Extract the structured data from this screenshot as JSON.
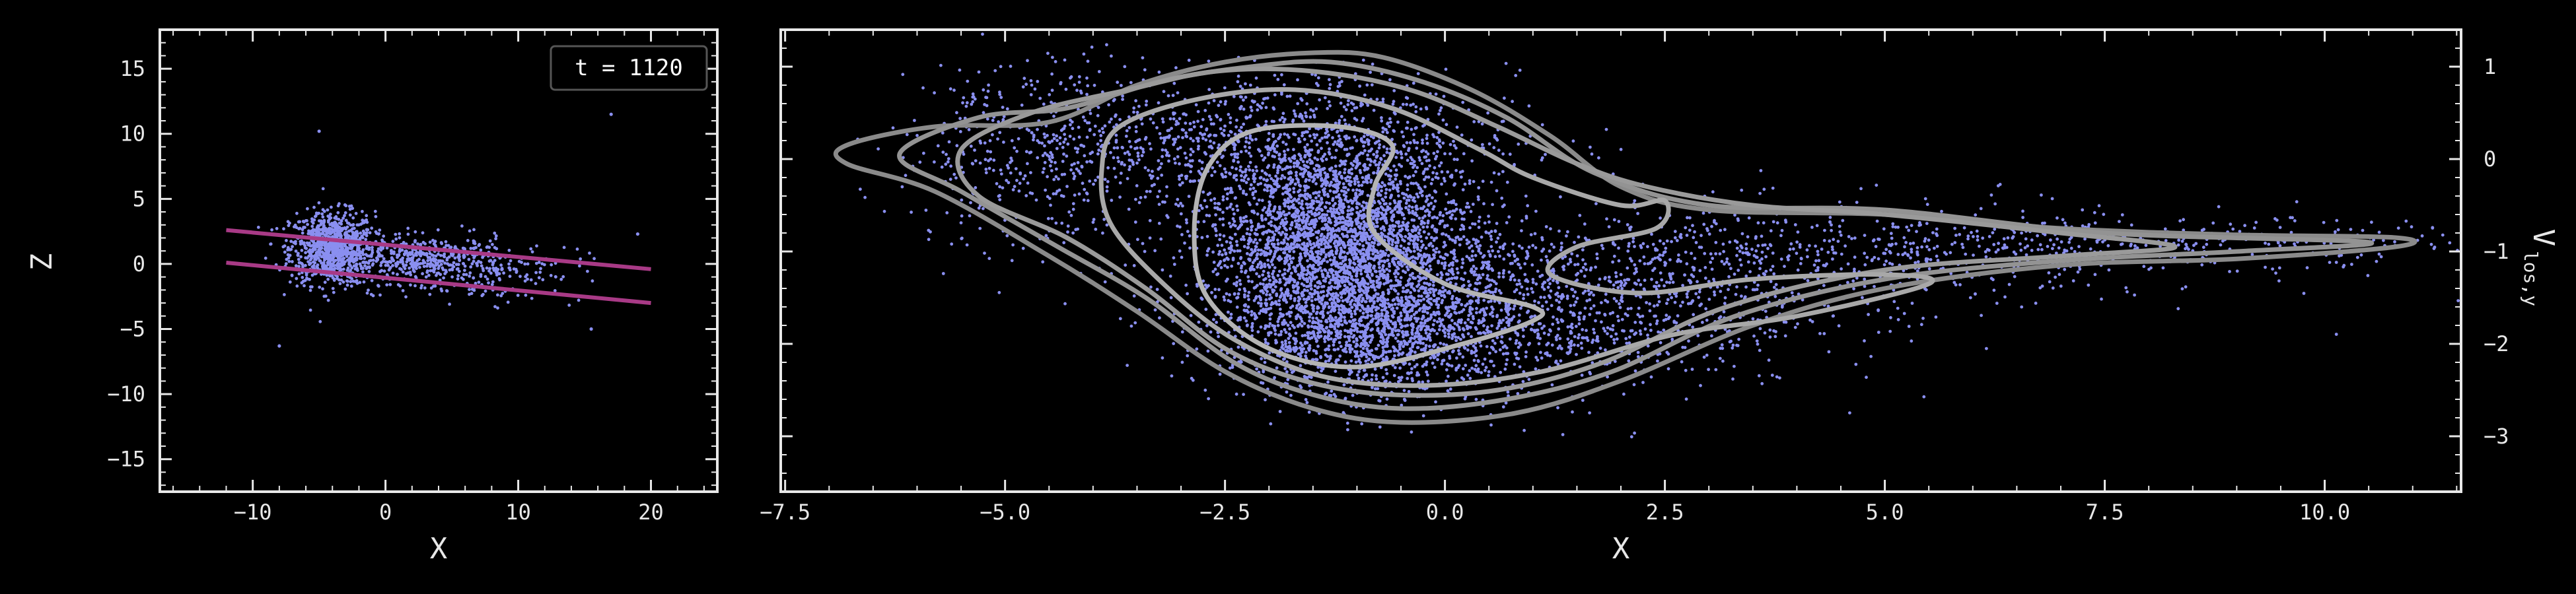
{
  "chart_data": [
    {
      "type": "scatter",
      "xlabel": "X",
      "ylabel": "Z",
      "xlim": [
        -17,
        25
      ],
      "ylim": [
        -17.5,
        18
      ],
      "xticks": [
        -10,
        0,
        10,
        20
      ],
      "xtick_labels": [
        "−10",
        "0",
        "10",
        "20"
      ],
      "yticks": [
        -15,
        -10,
        -5,
        0,
        5,
        10,
        15
      ],
      "ytick_labels": [
        "−15",
        "−10",
        "−5",
        "0",
        "5",
        "10",
        "15"
      ],
      "annotation": "t = 1120",
      "colors": {
        "points": "#8a8ff0",
        "lines": "#a83a86",
        "axis": "#e8e8e8"
      },
      "lines": [
        {
          "x": [
            -12,
            20
          ],
          "y": [
            2.6,
            -0.4
          ]
        },
        {
          "x": [
            -12,
            20
          ],
          "y": [
            0.1,
            -3.0
          ]
        }
      ],
      "clusters": [
        {
          "cx": -4,
          "cy": 1.2,
          "sx": 1.6,
          "sy": 1.4,
          "n": 900
        },
        {
          "cx": 3,
          "cy": 0.3,
          "sx": 3.2,
          "sy": 0.9,
          "n": 450
        },
        {
          "cx": 8,
          "cy": -0.6,
          "sx": 3.5,
          "sy": 1.2,
          "n": 140
        }
      ],
      "outliers": [
        {
          "x": -5,
          "y": 10.2
        },
        {
          "x": 17,
          "y": 11.5
        },
        {
          "x": 15.5,
          "y": -5
        },
        {
          "x": -8,
          "y": -6.3
        },
        {
          "x": 19,
          "y": 2.3
        }
      ]
    },
    {
      "type": "scatter",
      "subtype": "scatter-with-density-contours",
      "xlabel": "X",
      "ylabel_main": "V",
      "ylabel_sub": "los,y",
      "xlim": [
        -7.55,
        11.55
      ],
      "ylim": [
        -3.6,
        1.4
      ],
      "xticks": [
        -7.5,
        -5.0,
        -2.5,
        0.0,
        2.5,
        5.0,
        7.5,
        10.0
      ],
      "xtick_labels": [
        "−7.5",
        "−5.0",
        "−2.5",
        "0.0",
        "2.5",
        "5.0",
        "7.5",
        "10.0"
      ],
      "yticks": [
        1,
        0,
        -1,
        -2,
        -3
      ],
      "ytick_labels": [
        "1",
        "0",
        "−1",
        "−2",
        "−3"
      ],
      "colors": {
        "points": "#8a8ff0",
        "contours": "#9a9a9a",
        "axis": "#e8e8e8"
      },
      "contours": [
        [
          [
            -6.8,
            0.15
          ],
          [
            -5.8,
            0.35
          ],
          [
            -4.5,
            0.4
          ],
          [
            -3.5,
            0.8
          ],
          [
            -2.5,
            1.05
          ],
          [
            -1.5,
            1.15
          ],
          [
            -0.7,
            1.1
          ],
          [
            0.3,
            0.75
          ],
          [
            1.2,
            0.25
          ],
          [
            2.0,
            -0.3
          ],
          [
            3.0,
            -0.55
          ],
          [
            5.0,
            -0.6
          ],
          [
            7.0,
            -0.75
          ],
          [
            9.0,
            -0.82
          ],
          [
            10.8,
            -0.85
          ],
          [
            10.8,
            -0.95
          ],
          [
            9.0,
            -1.08
          ],
          [
            7.0,
            -1.15
          ],
          [
            5.0,
            -1.4
          ],
          [
            3.5,
            -1.8
          ],
          [
            2.0,
            -2.4
          ],
          [
            0.8,
            -2.75
          ],
          [
            -0.5,
            -2.85
          ],
          [
            -1.5,
            -2.7
          ],
          [
            -2.5,
            -2.3
          ],
          [
            -3.5,
            -1.65
          ],
          [
            -4.5,
            -1.05
          ],
          [
            -5.8,
            -0.35
          ],
          [
            -6.8,
            -0.05
          ]
        ],
        [
          [
            -6.2,
            0.05
          ],
          [
            -5.3,
            0.45
          ],
          [
            -4.3,
            0.55
          ],
          [
            -3.2,
            0.85
          ],
          [
            -2.2,
            1.0
          ],
          [
            -1.3,
            1.05
          ],
          [
            -0.3,
            0.85
          ],
          [
            0.7,
            0.45
          ],
          [
            1.7,
            -0.15
          ],
          [
            3.0,
            -0.5
          ],
          [
            5.0,
            -0.55
          ],
          [
            7.5,
            -0.8
          ],
          [
            10.5,
            -0.9
          ],
          [
            9.0,
            -1.0
          ],
          [
            7.0,
            -1.1
          ],
          [
            5.0,
            -1.3
          ],
          [
            3.3,
            -1.7
          ],
          [
            1.9,
            -2.3
          ],
          [
            0.7,
            -2.6
          ],
          [
            -0.5,
            -2.7
          ],
          [
            -1.5,
            -2.55
          ],
          [
            -2.4,
            -2.2
          ],
          [
            -3.4,
            -1.5
          ],
          [
            -4.4,
            -0.95
          ],
          [
            -5.5,
            -0.35
          ]
        ],
        [
          [
            -5.5,
            0.1
          ],
          [
            -4.7,
            0.5
          ],
          [
            -3.6,
            0.75
          ],
          [
            -2.6,
            0.95
          ],
          [
            -1.5,
            0.95
          ],
          [
            -0.4,
            0.75
          ],
          [
            0.6,
            0.35
          ],
          [
            1.5,
            -0.05
          ],
          [
            2.3,
            -0.3
          ],
          [
            3.5,
            -0.5
          ],
          [
            5.0,
            -0.6
          ],
          [
            7.0,
            -0.8
          ],
          [
            8.3,
            -0.95
          ],
          [
            7.0,
            -1.05
          ],
          [
            5.0,
            -1.2
          ],
          [
            3.2,
            -1.6
          ],
          [
            1.8,
            -2.2
          ],
          [
            0.6,
            -2.5
          ],
          [
            -0.6,
            -2.55
          ],
          [
            -1.6,
            -2.4
          ],
          [
            -2.5,
            -2.05
          ],
          [
            -3.4,
            -1.4
          ],
          [
            -4.3,
            -0.85
          ],
          [
            -5.3,
            -0.4
          ]
        ],
        [
          [
            -3.7,
            0.35
          ],
          [
            -2.8,
            0.65
          ],
          [
            -1.7,
            0.75
          ],
          [
            -0.6,
            0.55
          ],
          [
            0.4,
            0.1
          ],
          [
            1.0,
            -0.2
          ],
          [
            2.0,
            -0.5
          ],
          [
            2.5,
            -0.45
          ],
          [
            2.4,
            -0.75
          ],
          [
            1.5,
            -0.95
          ],
          [
            1.2,
            -1.25
          ],
          [
            2.2,
            -1.45
          ],
          [
            3.5,
            -1.3
          ],
          [
            5.0,
            -1.25
          ],
          [
            5.5,
            -1.35
          ],
          [
            4.0,
            -1.7
          ],
          [
            2.6,
            -1.9
          ],
          [
            1.1,
            -2.3
          ],
          [
            -0.2,
            -2.45
          ],
          [
            -1.4,
            -2.35
          ],
          [
            -2.4,
            -1.95
          ],
          [
            -3.2,
            -1.35
          ],
          [
            -3.8,
            -0.7
          ],
          [
            -3.9,
            -0.1
          ]
        ],
        [
          [
            -2.2,
            0.3
          ],
          [
            -1.2,
            0.35
          ],
          [
            -0.6,
            0.15
          ],
          [
            -0.8,
            -0.3
          ],
          [
            -0.8,
            -0.8
          ],
          [
            0.0,
            -1.35
          ],
          [
            1.0,
            -1.6
          ],
          [
            1.0,
            -1.75
          ],
          [
            0.2,
            -2.0
          ],
          [
            -1.0,
            -2.25
          ],
          [
            -2.0,
            -2.05
          ],
          [
            -2.7,
            -1.5
          ],
          [
            -2.85,
            -0.8
          ],
          [
            -2.7,
            -0.1
          ]
        ]
      ],
      "clusters": [
        {
          "cx": -1.2,
          "cy": -0.9,
          "sx": 0.75,
          "sy": 0.55,
          "n": 3200
        },
        {
          "cx": -0.8,
          "cy": -1.9,
          "sx": 0.9,
          "sy": 0.35,
          "n": 1300
        },
        {
          "cx": -2.0,
          "cy": 0.2,
          "sx": 1.4,
          "sy": 0.35,
          "n": 900
        },
        {
          "cx": 1.2,
          "cy": -1.6,
          "sx": 1.5,
          "sy": 0.45,
          "n": 1100
        },
        {
          "cx": 4.5,
          "cy": -1.05,
          "sx": 2.2,
          "sy": 0.28,
          "n": 700
        },
        {
          "cx": 8.5,
          "cy": -0.9,
          "sx": 1.6,
          "sy": 0.12,
          "n": 250
        },
        {
          "cx": -4.5,
          "cy": 0.05,
          "sx": 0.9,
          "sy": 0.55,
          "n": 450
        }
      ]
    }
  ]
}
